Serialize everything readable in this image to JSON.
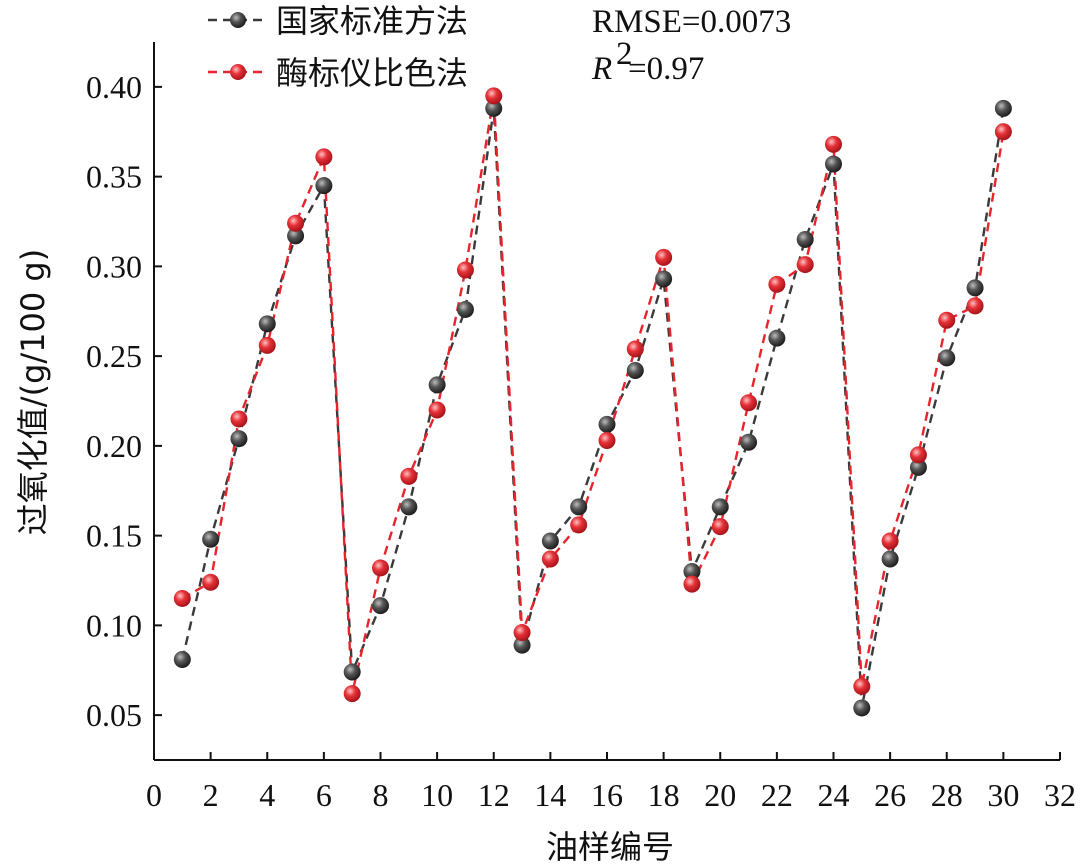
{
  "chart_data": {
    "type": "line",
    "title": "",
    "xlabel": "油样编号",
    "ylabel": "过氧化值/(g/100 g)",
    "xlim": [
      0,
      32
    ],
    "ylim": [
      0.025,
      0.425
    ],
    "x_ticks": [
      0,
      2,
      4,
      6,
      8,
      10,
      12,
      14,
      16,
      18,
      20,
      22,
      24,
      26,
      28,
      30,
      32
    ],
    "x_tick_labels": [
      "0",
      "2",
      "4",
      "6",
      "8",
      "10",
      "12",
      "14",
      "16",
      "18",
      "20",
      "22",
      "24",
      "26",
      "28",
      "30",
      "32"
    ],
    "y_ticks": [
      0.05,
      0.1,
      0.15,
      0.2,
      0.25,
      0.3,
      0.35,
      0.4
    ],
    "y_tick_labels": [
      "0.05",
      "0.10",
      "0.15",
      "0.20",
      "0.25",
      "0.30",
      "0.35",
      "0.40"
    ],
    "grid": false,
    "legend_position": "top-left",
    "annotations": {
      "rmse": "RMSE=0.0073",
      "r2_symbol": "R",
      "r2_exponent": "2",
      "r2_value": "=0.97"
    },
    "x": [
      1,
      2,
      3,
      4,
      5,
      6,
      7,
      8,
      9,
      10,
      11,
      12,
      13,
      14,
      15,
      16,
      17,
      18,
      19,
      20,
      21,
      22,
      23,
      24,
      25,
      26,
      27,
      28,
      29,
      30
    ],
    "series": [
      {
        "name": "国家标准方法",
        "color": "#3a3a3a",
        "marker_fill": "#4a4a4a",
        "line_style": "dashed",
        "values": [
          0.081,
          0.148,
          0.204,
          0.268,
          0.317,
          0.345,
          0.074,
          0.111,
          0.166,
          0.234,
          0.276,
          0.388,
          0.089,
          0.147,
          0.166,
          0.212,
          0.242,
          0.293,
          0.13,
          0.166,
          0.202,
          0.26,
          0.315,
          0.357,
          0.054,
          0.137,
          0.188,
          0.249,
          0.288,
          0.388
        ]
      },
      {
        "name": "酶标仪比色法",
        "color": "#e8232b",
        "marker_fill": "#e33a40",
        "line_style": "dashed",
        "values": [
          0.115,
          0.124,
          0.215,
          0.256,
          0.324,
          0.361,
          0.062,
          0.132,
          0.183,
          0.22,
          0.298,
          0.395,
          0.096,
          0.137,
          0.156,
          0.203,
          0.254,
          0.305,
          0.123,
          0.155,
          0.224,
          0.29,
          0.301,
          0.368,
          0.066,
          0.147,
          0.195,
          0.27,
          0.278,
          0.375
        ]
      }
    ]
  }
}
